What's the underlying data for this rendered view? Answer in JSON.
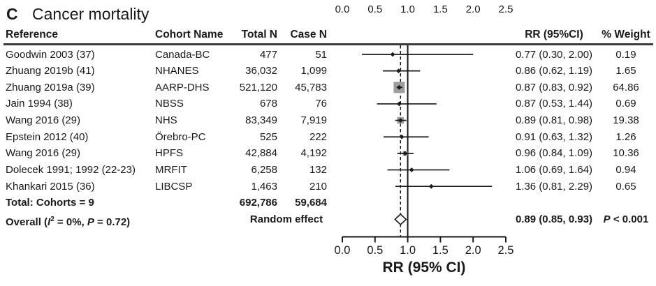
{
  "title": {
    "panel_label": "C",
    "text": "Cancer mortality"
  },
  "columns": {
    "reference": "Reference",
    "cohort": "Cohort Name",
    "total_n": "Total N",
    "case_n": "Case N",
    "rr": "RR (95%CI)",
    "weight": "% Weight"
  },
  "rows": [
    {
      "reference": "Goodwin 2003 (37)",
      "cohort": "Canada-BC",
      "total_n": "477",
      "case_n": "51",
      "rr_text": "0.77 (0.30, 2.00)",
      "weight": "0.19"
    },
    {
      "reference": "Zhuang 2019b (41)",
      "cohort": "NHANES",
      "total_n": "36,032",
      "case_n": "1,099",
      "rr_text": "0.86 (0.62, 1.19)",
      "weight": "1.65"
    },
    {
      "reference": "Zhuang 2019a (39)",
      "cohort": "AARP-DHS",
      "total_n": "521,120",
      "case_n": "45,783",
      "rr_text": "0.87 (0.83, 0.92)",
      "weight": "64.86"
    },
    {
      "reference": "Jain 1994 (38)",
      "cohort": "NBSS",
      "total_n": "678",
      "case_n": "76",
      "rr_text": "0.87 (0.53, 1.44)",
      "weight": "0.69"
    },
    {
      "reference": "Wang 2016 (29)",
      "cohort": "NHS",
      "total_n": "83,349",
      "case_n": "7,919",
      "rr_text": "0.89 (0.81, 0.98)",
      "weight": "19.38"
    },
    {
      "reference": "Epstein 2012 (40)",
      "cohort": "Örebro-PC",
      "total_n": "525",
      "case_n": "222",
      "rr_text": "0.91 (0.63, 1.32)",
      "weight": "1.26"
    },
    {
      "reference": "Wang 2016 (29)",
      "cohort": "HPFS",
      "total_n": "42,884",
      "case_n": "4,192",
      "rr_text": "0.96 (0.84, 1.09)",
      "weight": "10.36"
    },
    {
      "reference": "Dolecek 1991; 1992 (22-23)",
      "cohort": "MRFIT",
      "total_n": "6,258",
      "case_n": "132",
      "rr_text": "1.06 (0.69, 1.64)",
      "weight": "0.94"
    },
    {
      "reference": "Khankari 2015 (36)",
      "cohort": "LIBCSP",
      "total_n": "1,463",
      "case_n": "210",
      "rr_text": "1.36 (0.81, 2.29)",
      "weight": "0.65"
    }
  ],
  "total_row": {
    "label": "Total: Cohorts = 9",
    "total_n": "692,786",
    "case_n": "59,684"
  },
  "overall_row": {
    "prefix": "Overall (",
    "i_label": "I",
    "i_sup": "2",
    "mid": " = 0%, ",
    "p_label": "P",
    "suffix": " = 0.72)",
    "method": "Random effect",
    "rr_text": "0.89 (0.85, 0.93)",
    "p_stat_label": "P",
    "p_stat_rest": " < 0.001"
  },
  "chart_data": {
    "type": "forest",
    "title": "Cancer mortality",
    "xlabel": "RR (95% CI)",
    "x_ticks": [
      0.0,
      0.5,
      1.0,
      1.5,
      2.0,
      2.5
    ],
    "x_range": [
      0.0,
      2.5
    ],
    "reference_line_x": 1.0,
    "pooled_dashed_line_x": 0.89,
    "studies": [
      {
        "name": "Goodwin 2003 (37)",
        "cohort": "Canada-BC",
        "rr": 0.77,
        "ci_low": 0.3,
        "ci_high": 2.0,
        "weight_pct": 0.19
      },
      {
        "name": "Zhuang 2019b (41)",
        "cohort": "NHANES",
        "rr": 0.86,
        "ci_low": 0.62,
        "ci_high": 1.19,
        "weight_pct": 1.65
      },
      {
        "name": "Zhuang 2019a (39)",
        "cohort": "AARP-DHS",
        "rr": 0.87,
        "ci_low": 0.83,
        "ci_high": 0.92,
        "weight_pct": 64.86
      },
      {
        "name": "Jain 1994 (38)",
        "cohort": "NBSS",
        "rr": 0.87,
        "ci_low": 0.53,
        "ci_high": 1.44,
        "weight_pct": 0.69
      },
      {
        "name": "Wang 2016 (29)",
        "cohort": "NHS",
        "rr": 0.89,
        "ci_low": 0.81,
        "ci_high": 0.98,
        "weight_pct": 19.38
      },
      {
        "name": "Epstein 2012 (40)",
        "cohort": "Örebro-PC",
        "rr": 0.91,
        "ci_low": 0.63,
        "ci_high": 1.32,
        "weight_pct": 1.26
      },
      {
        "name": "Wang 2016 (29)",
        "cohort": "HPFS",
        "rr": 0.96,
        "ci_low": 0.84,
        "ci_high": 1.09,
        "weight_pct": 10.36
      },
      {
        "name": "Dolecek 1991; 1992 (22-23)",
        "cohort": "MRFIT",
        "rr": 1.06,
        "ci_low": 0.69,
        "ci_high": 1.64,
        "weight_pct": 0.94
      },
      {
        "name": "Khankari 2015 (36)",
        "cohort": "LIBCSP",
        "rr": 1.36,
        "ci_low": 0.81,
        "ci_high": 2.29,
        "weight_pct": 0.65
      }
    ],
    "overall": {
      "model": "Random effect",
      "rr": 0.89,
      "ci_low": 0.85,
      "ci_high": 0.93,
      "p_value": "< 0.001",
      "i_squared_pct": 0,
      "heterogeneity_p": 0.72,
      "cohorts": 9,
      "total_n": "692,786",
      "case_n": "59,684"
    }
  },
  "colors": {
    "ink": "#1a1a1a",
    "square_fill": "#9e9e9e",
    "diamond_fill": "#ffffff"
  }
}
